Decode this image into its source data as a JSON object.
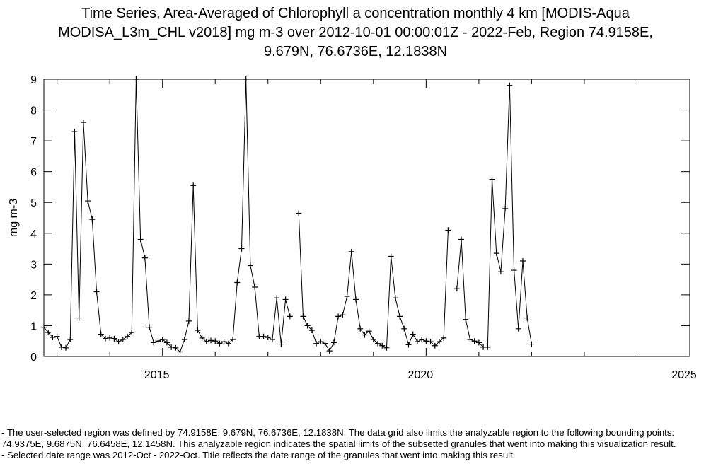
{
  "header": {
    "title_lines": [
      "Time Series, Area-Averaged of Chlorophyll a concentration monthly 4 km [MODIS-Aqua",
      "MODISA_L3m_CHL v2018] mg m-3 over 2012-10-01 00:00:01Z - 2022-Feb, Region 74.9158E,",
      "9.679N, 76.6736E, 12.1838N"
    ]
  },
  "notes": {
    "line1": "- The user-selected region was defined by 74.9158E, 9.679N, 76.6736E, 12.1838N. The data grid also limits the analyzable region to the following bounding points: 74.9375E, 9.6875N, 76.6458E, 12.1458N. This analyzable region indicates the spatial limits of the subsetted granules that went into making this visualization result.",
    "line2": "- Selected date range was 2012-Oct - 2022-Oct. Title reflects the date range of the granules that went into making this result."
  },
  "chart_data": {
    "type": "line",
    "title": "Time Series, Area-Averaged of Chlorophyll a concentration monthly 4 km [MODIS-Aqua MODISA_L3m_CHL v2018] mg m-3 over 2012-10-01 00:00:01Z - 2022-Feb, Region 74.9158E, 9.679N, 76.6736E, 12.1838N",
    "xlabel": "",
    "ylabel": "mg m-3",
    "x_range": [
      "2012-10",
      "2025-01"
    ],
    "x_ticks": [
      "2015",
      "2020",
      "2025"
    ],
    "ylim": [
      0,
      9
    ],
    "y_ticks": [
      "0",
      "1",
      "2",
      "3",
      "4",
      "5",
      "6",
      "7",
      "8",
      "9"
    ],
    "grid": false,
    "marker": "+",
    "line_color": "#000000",
    "series": [
      {
        "name": "",
        "points": [
          {
            "x": "2012-10",
            "y": 0.95
          },
          {
            "x": "2012-11",
            "y": 0.78
          },
          {
            "x": "2012-12",
            "y": 0.62
          },
          {
            "x": "2013-01",
            "y": 0.65
          },
          {
            "x": "2013-02",
            "y": 0.3
          },
          {
            "x": "2013-03",
            "y": 0.28
          },
          {
            "x": "2013-04",
            "y": 0.55
          },
          {
            "x": "2013-05",
            "y": 7.3
          },
          {
            "x": "2013-06",
            "y": 1.25
          },
          {
            "x": "2013-07",
            "y": 7.6
          },
          {
            "x": "2013-08",
            "y": 5.05
          },
          {
            "x": "2013-09",
            "y": 4.45
          },
          {
            "x": "2013-10",
            "y": 2.1
          },
          {
            "x": "2013-11",
            "y": 0.72
          },
          {
            "x": "2013-12",
            "y": 0.58
          },
          {
            "x": "2014-01",
            "y": 0.6
          },
          {
            "x": "2014-02",
            "y": 0.58
          },
          {
            "x": "2014-03",
            "y": 0.48
          },
          {
            "x": "2014-04",
            "y": 0.55
          },
          {
            "x": "2014-05",
            "y": 0.65
          },
          {
            "x": "2014-06",
            "y": 0.78
          },
          {
            "x": "2014-07",
            "y": 9.0
          },
          {
            "x": "2014-08",
            "y": 3.8
          },
          {
            "x": "2014-09",
            "y": 3.2
          },
          {
            "x": "2014-10",
            "y": 0.95
          },
          {
            "x": "2014-11",
            "y": 0.45
          },
          {
            "x": "2014-12",
            "y": 0.5
          },
          {
            "x": "2015-01",
            "y": 0.55
          },
          {
            "x": "2015-02",
            "y": 0.45
          },
          {
            "x": "2015-03",
            "y": 0.3
          },
          {
            "x": "2015-04",
            "y": 0.28
          },
          {
            "x": "2015-05",
            "y": 0.15
          },
          {
            "x": "2015-06",
            "y": 0.55
          },
          {
            "x": "2015-07",
            "y": 1.15
          },
          {
            "x": "2015-08",
            "y": 5.55
          },
          {
            "x": "2015-09",
            "y": 0.85
          },
          {
            "x": "2015-10",
            "y": 0.6
          },
          {
            "x": "2015-11",
            "y": 0.48
          },
          {
            "x": "2015-12",
            "y": 0.52
          },
          {
            "x": "2016-01",
            "y": 0.5
          },
          {
            "x": "2016-02",
            "y": 0.42
          },
          {
            "x": "2016-03",
            "y": 0.48
          },
          {
            "x": "2016-04",
            "y": 0.42
          },
          {
            "x": "2016-05",
            "y": 0.55
          },
          {
            "x": "2016-06",
            "y": 2.4
          },
          {
            "x": "2016-07",
            "y": 3.5
          },
          {
            "x": "2016-08",
            "y": 9.0
          },
          {
            "x": "2016-09",
            "y": 2.95
          },
          {
            "x": "2016-10",
            "y": 2.25
          },
          {
            "x": "2016-11",
            "y": 0.65
          },
          {
            "x": "2016-12",
            "y": 0.65
          },
          {
            "x": "2017-01",
            "y": 0.62
          },
          {
            "x": "2017-02",
            "y": 0.55
          },
          {
            "x": "2017-03",
            "y": 1.9
          },
          {
            "x": "2017-04",
            "y": 0.4
          },
          {
            "x": "2017-05",
            "y": 1.85
          },
          {
            "x": "2017-06",
            "y": 1.3
          },
          {
            "x": "2017-08",
            "y": 4.65
          },
          {
            "x": "2017-09",
            "y": 1.3
          },
          {
            "x": "2017-10",
            "y": 1.0
          },
          {
            "x": "2017-11",
            "y": 0.85
          },
          {
            "x": "2017-12",
            "y": 0.42
          },
          {
            "x": "2018-01",
            "y": 0.48
          },
          {
            "x": "2018-02",
            "y": 0.42
          },
          {
            "x": "2018-03",
            "y": 0.18
          },
          {
            "x": "2018-04",
            "y": 0.45
          },
          {
            "x": "2018-05",
            "y": 1.3
          },
          {
            "x": "2018-06",
            "y": 1.35
          },
          {
            "x": "2018-07",
            "y": 1.95
          },
          {
            "x": "2018-08",
            "y": 3.4
          },
          {
            "x": "2018-09",
            "y": 1.85
          },
          {
            "x": "2018-10",
            "y": 0.9
          },
          {
            "x": "2018-11",
            "y": 0.7
          },
          {
            "x": "2018-12",
            "y": 0.82
          },
          {
            "x": "2019-01",
            "y": 0.55
          },
          {
            "x": "2019-02",
            "y": 0.42
          },
          {
            "x": "2019-03",
            "y": 0.35
          },
          {
            "x": "2019-04",
            "y": 0.28
          },
          {
            "x": "2019-05",
            "y": 3.25
          },
          {
            "x": "2019-06",
            "y": 1.9
          },
          {
            "x": "2019-07",
            "y": 1.3
          },
          {
            "x": "2019-08",
            "y": 0.9
          },
          {
            "x": "2019-09",
            "y": 0.38
          },
          {
            "x": "2019-10",
            "y": 0.72
          },
          {
            "x": "2019-11",
            "y": 0.48
          },
          {
            "x": "2019-12",
            "y": 0.55
          },
          {
            "x": "2020-01",
            "y": 0.5
          },
          {
            "x": "2020-02",
            "y": 0.48
          },
          {
            "x": "2020-03",
            "y": 0.35
          },
          {
            "x": "2020-04",
            "y": 0.48
          },
          {
            "x": "2020-05",
            "y": 0.6
          },
          {
            "x": "2020-06",
            "y": 4.1
          },
          {
            "x": "2020-08",
            "y": 2.2
          },
          {
            "x": "2020-09",
            "y": 3.8
          },
          {
            "x": "2020-10",
            "y": 1.2
          },
          {
            "x": "2020-11",
            "y": 0.55
          },
          {
            "x": "2020-12",
            "y": 0.5
          },
          {
            "x": "2021-01",
            "y": 0.45
          },
          {
            "x": "2021-02",
            "y": 0.3
          },
          {
            "x": "2021-03",
            "y": 0.3
          },
          {
            "x": "2021-04",
            "y": 5.75
          },
          {
            "x": "2021-05",
            "y": 3.35
          },
          {
            "x": "2021-06",
            "y": 2.75
          },
          {
            "x": "2021-07",
            "y": 4.8
          },
          {
            "x": "2021-08",
            "y": 8.8
          },
          {
            "x": "2021-09",
            "y": 2.8
          },
          {
            "x": "2021-10",
            "y": 0.9
          },
          {
            "x": "2021-11",
            "y": 3.1
          },
          {
            "x": "2021-12",
            "y": 1.25
          },
          {
            "x": "2022-01",
            "y": 0.4
          }
        ]
      }
    ]
  }
}
